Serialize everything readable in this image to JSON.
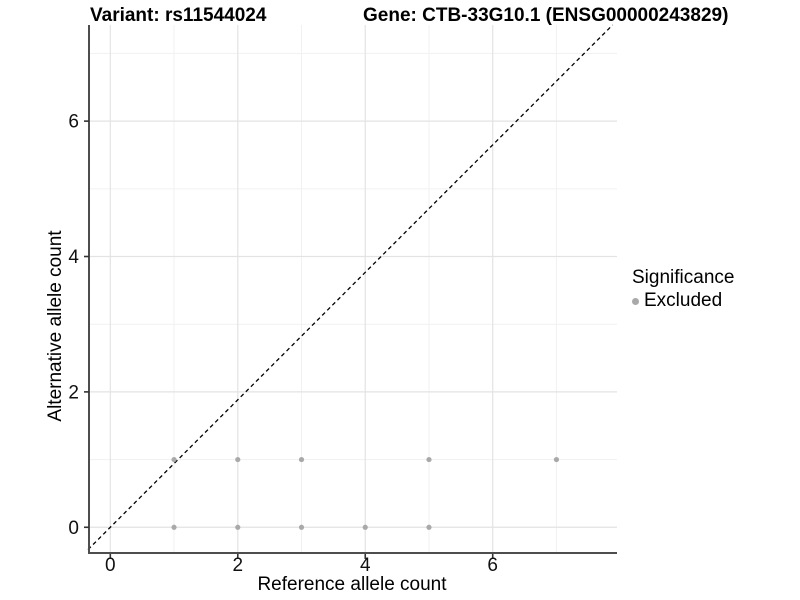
{
  "header": {
    "title_left": "Variant: rs11544024",
    "title_right": "Gene: CTB-33G10.1 (ENSG00000243829)"
  },
  "axes": {
    "x_label": "Reference allele count",
    "y_label": "Alternative allele count"
  },
  "legend": {
    "title": "Significance",
    "items": [
      {
        "label": "Excluded",
        "color": "#a9a9a9"
      }
    ]
  },
  "chart_data": {
    "type": "scatter",
    "title_left": "Variant: rs11544024",
    "title_right": "Gene: CTB-33G10.1 (ENSG00000243829)",
    "xlabel": "Reference allele count",
    "ylabel": "Alternative allele count",
    "xlim": [
      -0.35,
      7.95
    ],
    "ylim": [
      -0.38,
      7.42
    ],
    "x_ticks": [
      0,
      2,
      4,
      6
    ],
    "y_ticks": [
      0,
      2,
      4,
      6
    ],
    "minor_x": [
      1,
      3,
      5,
      7
    ],
    "minor_y": [
      1,
      3,
      5,
      7
    ],
    "grid": true,
    "legend_position": "right",
    "series": [
      {
        "name": "Excluded",
        "color": "#a9a9a9",
        "points": [
          [
            1,
            0
          ],
          [
            2,
            0
          ],
          [
            3,
            0
          ],
          [
            4,
            0
          ],
          [
            5,
            0
          ],
          [
            1,
            1
          ],
          [
            2,
            1
          ],
          [
            3,
            1
          ],
          [
            5,
            1
          ],
          [
            7,
            1
          ]
        ]
      }
    ],
    "reference_line": {
      "type": "diagonal-dashed",
      "color": "#000000"
    }
  },
  "colors": {
    "background": "#ffffff",
    "point": "#a9a9a9",
    "grid_major": "#e3e3e3",
    "grid_minor": "#f1f1f1",
    "axis_line": "#4d4d4d",
    "tick": "#333333",
    "text": "#000000",
    "ref_line": "#000000"
  }
}
